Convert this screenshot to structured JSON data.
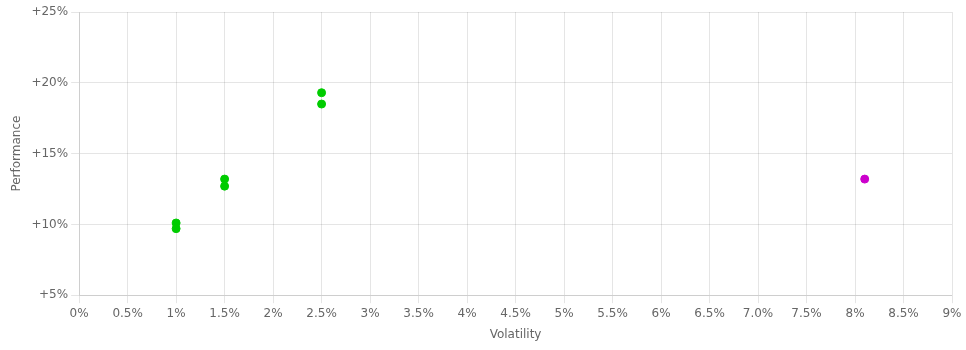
{
  "chart_data": {
    "type": "scatter",
    "xlabel": "Volatility",
    "ylabel": "Performance",
    "series": [
      {
        "color": "#00cc00",
        "marker": "circle",
        "x": [
          0.01,
          0.01,
          0.015,
          0.015,
          0.025,
          0.025
        ],
        "values": [
          0.101,
          0.097,
          0.132,
          0.127,
          0.193,
          0.185
        ]
      },
      {
        "color": "#cc00cc",
        "marker": "circle",
        "x": [
          0.081
        ],
        "values": [
          0.132
        ]
      }
    ],
    "xlim": [
      0,
      0.09
    ],
    "ylim": [
      0.05,
      0.25
    ],
    "xticks": [
      {
        "value": 0.0,
        "label": "0%"
      },
      {
        "value": 0.005,
        "label": "0.5%"
      },
      {
        "value": 0.01,
        "label": "1%"
      },
      {
        "value": 0.015,
        "label": "1.5%"
      },
      {
        "value": 0.02,
        "label": "2%"
      },
      {
        "value": 0.025,
        "label": "2.5%"
      },
      {
        "value": 0.03,
        "label": "3%"
      },
      {
        "value": 0.035,
        "label": "3.5%"
      },
      {
        "value": 0.04,
        "label": "4%"
      },
      {
        "value": 0.045,
        "label": "4.5%"
      },
      {
        "value": 0.05,
        "label": "5%"
      },
      {
        "value": 0.055,
        "label": "5.5%"
      },
      {
        "value": 0.06,
        "label": "6%"
      },
      {
        "value": 0.065,
        "label": "6.5%"
      },
      {
        "value": 0.07,
        "label": "7.0%"
      },
      {
        "value": 0.075,
        "label": "7.5%"
      },
      {
        "value": 0.08,
        "label": "8%"
      },
      {
        "value": 0.085,
        "label": "8.5%"
      },
      {
        "value": 0.09,
        "label": "9%"
      }
    ],
    "yticks": [
      {
        "value": 0.05,
        "label": "+5%"
      },
      {
        "value": 0.1,
        "label": "+10%"
      },
      {
        "value": 0.15,
        "label": "+15%"
      },
      {
        "value": 0.2,
        "label": "+20%"
      },
      {
        "value": 0.25,
        "label": "+25%"
      }
    ],
    "grid": true
  }
}
